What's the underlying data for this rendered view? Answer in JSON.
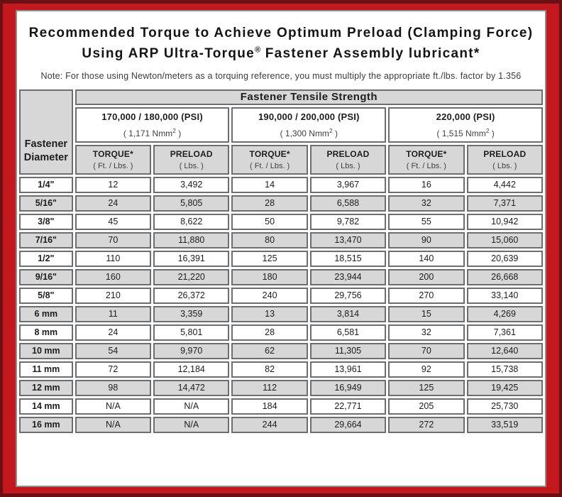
{
  "colors": {
    "frame_red": "#c2181e",
    "frame_dark": "#691014",
    "cell_gray": "#d7d7d7",
    "cell_border": "#6b6d6f",
    "content_border": "#8c8c8c"
  },
  "title": {
    "line1": "Recommended Torque to Achieve Optimum Preload (Clamping Force)",
    "line2_pre": "Using ARP Ultra-Torque",
    "line2_sup": "®",
    "line2_post": " Fastener Assembly lubricant*"
  },
  "note": "Note: For those using Newton/meters as a torquing reference, you must multiply the appropriate ft./lbs. factor by 1.356",
  "table": {
    "corner": {
      "line1": "Fastener",
      "line2": "Diameter"
    },
    "tensile_header": "Fastener Tensile Strength",
    "groups": [
      {
        "psi": "170,000 / 180,000 (PSI)",
        "nmm_pre": "( 1,171 Nmm",
        "nmm_sup": "2",
        "nmm_post": " )"
      },
      {
        "psi": "190,000 / 200,000 (PSI)",
        "nmm_pre": "( 1,300 Nmm",
        "nmm_sup": "2",
        "nmm_post": " )"
      },
      {
        "psi": "220,000 (PSI)",
        "nmm_pre": "( 1,515 Nmm",
        "nmm_sup": "2",
        "nmm_post": " )"
      }
    ],
    "col_headers": {
      "torque": "TORQUE*",
      "torque_unit": "( Ft. / Lbs. )",
      "preload": "PRELOAD",
      "preload_unit": "( Lbs. )"
    },
    "rows": [
      {
        "d": "1/4\"",
        "v": [
          "12",
          "3,492",
          "14",
          "3,967",
          "16",
          "4,442"
        ]
      },
      {
        "d": "5/16\"",
        "v": [
          "24",
          "5,805",
          "28",
          "6,588",
          "32",
          "7,371"
        ]
      },
      {
        "d": "3/8\"",
        "v": [
          "45",
          "8,622",
          "50",
          "9,782",
          "55",
          "10,942"
        ]
      },
      {
        "d": "7/16\"",
        "v": [
          "70",
          "11,880",
          "80",
          "13,470",
          "90",
          "15,060"
        ]
      },
      {
        "d": "1/2\"",
        "v": [
          "110",
          "16,391",
          "125",
          "18,515",
          "140",
          "20,639"
        ]
      },
      {
        "d": "9/16\"",
        "v": [
          "160",
          "21,220",
          "180",
          "23,944",
          "200",
          "26,668"
        ]
      },
      {
        "d": "5/8\"",
        "v": [
          "210",
          "26,372",
          "240",
          "29,756",
          "270",
          "33,140"
        ]
      },
      {
        "d": "6 mm",
        "v": [
          "11",
          "3,359",
          "13",
          "3,814",
          "15",
          "4,269"
        ]
      },
      {
        "d": "8 mm",
        "v": [
          "24",
          "5,801",
          "28",
          "6,581",
          "32",
          "7,361"
        ]
      },
      {
        "d": "10 mm",
        "v": [
          "54",
          "9,970",
          "62",
          "11,305",
          "70",
          "12,640"
        ]
      },
      {
        "d": "11 mm",
        "v": [
          "72",
          "12,184",
          "82",
          "13,961",
          "92",
          "15,738"
        ]
      },
      {
        "d": "12 mm",
        "v": [
          "98",
          "14,472",
          "112",
          "16,949",
          "125",
          "19,425"
        ]
      },
      {
        "d": "14 mm",
        "v": [
          "N/A",
          "N/A",
          "184",
          "22,771",
          "205",
          "25,730"
        ]
      },
      {
        "d": "16 mm",
        "v": [
          "N/A",
          "N/A",
          "244",
          "29,664",
          "272",
          "33,519"
        ]
      }
    ]
  }
}
